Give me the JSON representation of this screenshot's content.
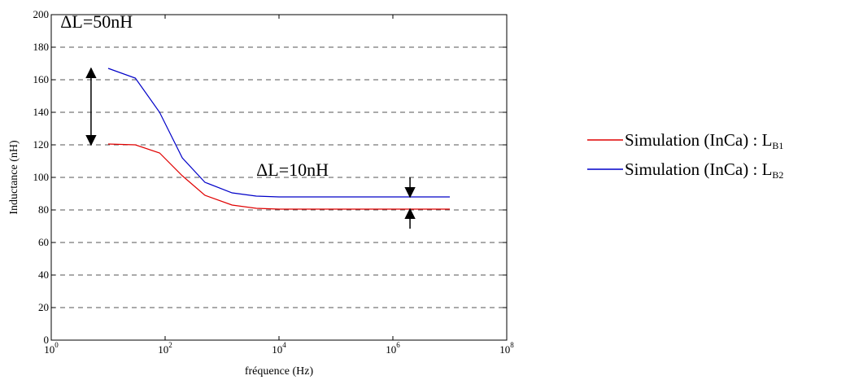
{
  "chart_data": {
    "type": "line",
    "xlabel": "fréquence (Hz)",
    "ylabel": "Inductance (nH)",
    "x_scale": "log",
    "xlim": [
      1,
      100000000
    ],
    "ylim": [
      0,
      200
    ],
    "grid": "horizontal-dashed",
    "legend_placement": "right",
    "x_ticks": [
      {
        "base": "10",
        "exp": "0",
        "value": 1
      },
      {
        "base": "10",
        "exp": "2",
        "value": 100
      },
      {
        "base": "10",
        "exp": "4",
        "value": 10000
      },
      {
        "base": "10",
        "exp": "6",
        "value": 1000000
      },
      {
        "base": "10",
        "exp": "8",
        "value": 100000000
      }
    ],
    "y_ticks": [
      "0",
      "20",
      "40",
      "60",
      "80",
      "100",
      "120",
      "140",
      "160",
      "180",
      "200"
    ],
    "series": [
      {
        "label": "Simulation (InCa) : L",
        "sub": "B1",
        "color": "#e00000",
        "points": [
          [
            10,
            120.5
          ],
          [
            30,
            120
          ],
          [
            80,
            115
          ],
          [
            200,
            101
          ],
          [
            500,
            89
          ],
          [
            1500,
            83
          ],
          [
            4000,
            81
          ],
          [
            10000,
            80.5
          ],
          [
            100000,
            80.5
          ],
          [
            1000000,
            80.5
          ],
          [
            10000000,
            80.5
          ]
        ]
      },
      {
        "label": "Simulation (InCa) : L",
        "sub": "B2",
        "color": "#0000c8",
        "points": [
          [
            10,
            167
          ],
          [
            30,
            161
          ],
          [
            80,
            140
          ],
          [
            200,
            112
          ],
          [
            500,
            97
          ],
          [
            1500,
            90.5
          ],
          [
            4000,
            88.5
          ],
          [
            10000,
            88
          ],
          [
            100000,
            88
          ],
          [
            1000000,
            88
          ],
          [
            10000000,
            88
          ]
        ]
      }
    ],
    "annotations": [
      {
        "text": "ΔL=50nH",
        "x": 1.45,
        "y": 192,
        "arrow": {
          "type": "double",
          "x": 5,
          "y1": 167,
          "y2": 120
        }
      },
      {
        "text": "ΔL=10nH",
        "x": 4000,
        "y": 101,
        "arrow": {
          "type": "pinch",
          "x": 2000000,
          "y1": 88,
          "y2": 80.5
        }
      }
    ]
  }
}
